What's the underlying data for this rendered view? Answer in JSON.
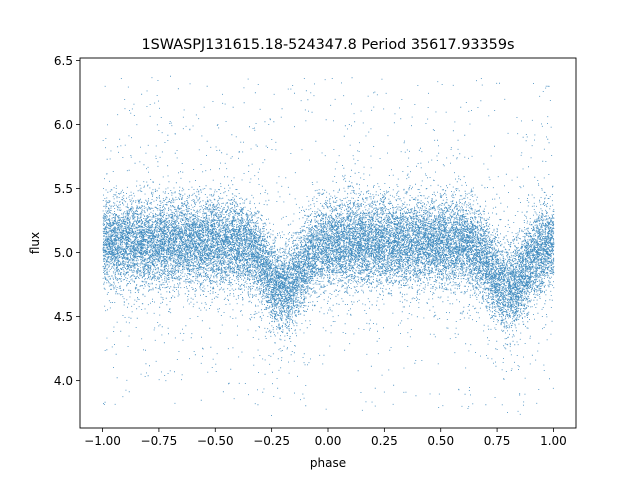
{
  "chart_data": {
    "type": "scatter",
    "title": "1SWASPJ131615.18-524347.8 Period 35617.93359s",
    "xlabel": "phase",
    "ylabel": "flux",
    "xlim": [
      -1.1,
      1.1
    ],
    "ylim": [
      3.63,
      6.52
    ],
    "x_ticks": [
      -1.0,
      -0.75,
      -0.5,
      -0.25,
      0.0,
      0.25,
      0.5,
      0.75,
      1.0
    ],
    "x_tick_labels": [
      "−1.00",
      "−0.75",
      "−0.50",
      "−0.25",
      "0.00",
      "0.25",
      "0.50",
      "0.75",
      "1.00"
    ],
    "y_ticks": [
      4.0,
      4.5,
      5.0,
      5.5,
      6.0,
      6.5
    ],
    "y_tick_labels": [
      "4.0",
      "4.5",
      "5.0",
      "5.5",
      "6.0",
      "6.5"
    ],
    "grid": false,
    "legend": "none",
    "marker_color": "#1f77b4",
    "phase_range": [
      -1.0,
      1.0
    ],
    "baseline_flux": 5.08,
    "flux_scatter": 0.17,
    "dips": [
      {
        "phase": -0.2,
        "flux": 4.72
      },
      {
        "phase": 0.8,
        "flux": 4.72
      }
    ],
    "approx_point_count": 26000
  }
}
